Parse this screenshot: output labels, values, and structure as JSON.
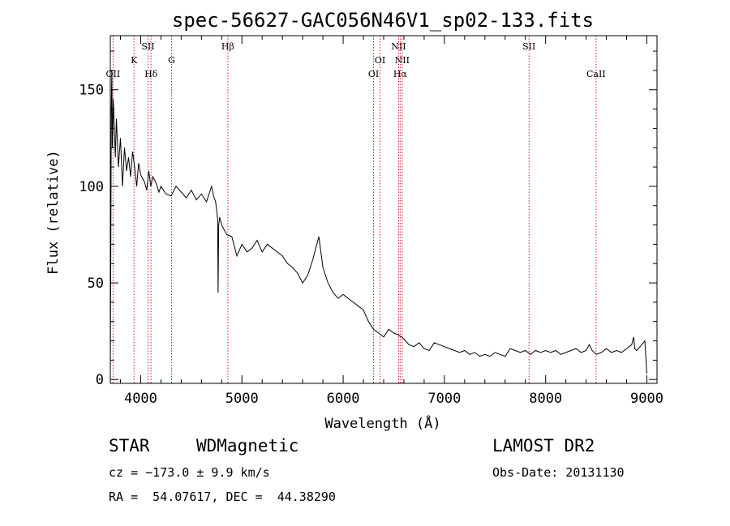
{
  "chart_data": {
    "type": "line",
    "title": "spec-56627-GAC056N46V1_sp02-133.fits",
    "xlabel": "Wavelength (Å)",
    "ylabel": "Flux (relative)",
    "xlim": [
      3700,
      9100
    ],
    "ylim": [
      -2,
      178
    ],
    "x_ticks": [
      4000,
      5000,
      6000,
      7000,
      8000,
      9000
    ],
    "y_ticks": [
      0,
      50,
      100,
      150
    ],
    "grid": false,
    "line_color": "#000000",
    "marker_color": "#cc2222",
    "series": [
      {
        "x": [
          3700,
          3705,
          3710,
          3715,
          3720,
          3730,
          3740,
          3750,
          3760,
          3780,
          3800,
          3820,
          3840,
          3860,
          3880,
          3900,
          3920,
          3940,
          3960,
          3980,
          4000,
          4020,
          4040,
          4060,
          4080,
          4100,
          4120,
          4150,
          4180,
          4200,
          4250,
          4300,
          4350,
          4400,
          4450,
          4500,
          4550,
          4600,
          4650,
          4700,
          4720,
          4740,
          4750,
          4760,
          4765,
          4770,
          4780,
          4800,
          4850,
          4900,
          4950,
          5000,
          5050,
          5100,
          5150,
          5200,
          5250,
          5300,
          5350,
          5400,
          5450,
          5500,
          5550,
          5600,
          5650,
          5700,
          5740,
          5760,
          5780,
          5800,
          5850,
          5900,
          5950,
          6000,
          6050,
          6100,
          6150,
          6200,
          6250,
          6300,
          6350,
          6400,
          6450,
          6500,
          6550,
          6600,
          6650,
          6700,
          6750,
          6800,
          6850,
          6900,
          6950,
          7000,
          7050,
          7100,
          7150,
          7200,
          7250,
          7300,
          7350,
          7400,
          7450,
          7500,
          7550,
          7600,
          7650,
          7700,
          7750,
          7800,
          7850,
          7900,
          7950,
          8000,
          8050,
          8100,
          8150,
          8200,
          8250,
          8300,
          8350,
          8400,
          8430,
          8460,
          8500,
          8550,
          8600,
          8650,
          8700,
          8750,
          8800,
          8850,
          8870,
          8880,
          8900,
          8950,
          8980,
          9000
        ],
        "y": [
          3,
          65,
          140,
          160,
          120,
          145,
          130,
          115,
          135,
          110,
          125,
          100,
          120,
          108,
          115,
          105,
          118,
          110,
          100,
          112,
          106,
          104,
          102,
          98,
          108,
          100,
          105,
          102,
          97,
          100,
          96,
          95,
          100,
          97,
          94,
          98,
          93,
          96,
          92,
          100,
          95,
          92,
          88,
          83,
          45,
          80,
          84,
          80,
          75,
          74,
          64,
          70,
          66,
          68,
          72,
          66,
          70,
          68,
          66,
          64,
          60,
          58,
          55,
          50,
          54,
          62,
          70,
          74,
          66,
          58,
          50,
          45,
          42,
          44,
          42,
          40,
          38,
          36,
          30,
          26,
          24,
          22,
          26,
          24,
          23,
          21,
          18,
          17,
          19,
          16,
          15,
          19,
          18,
          17,
          16,
          15,
          14,
          15,
          13,
          14,
          12,
          13,
          12,
          14,
          13,
          12,
          16,
          15,
          14,
          15,
          13,
          15,
          14,
          15,
          14,
          15,
          13,
          14,
          15,
          16,
          14,
          15,
          18,
          15,
          13,
          14,
          16,
          14,
          15,
          14,
          16,
          18,
          22,
          16,
          15,
          18,
          20,
          3
        ]
      }
    ],
    "line_markers": [
      {
        "label": "OII",
        "x": 3727,
        "row": 3
      },
      {
        "label": "K",
        "x": 3934,
        "row": 2
      },
      {
        "label": "SII",
        "x": 4072,
        "row": 1
      },
      {
        "label": "Hδ",
        "x": 4102,
        "row": 3
      },
      {
        "label": "G",
        "x": 4305,
        "row": 2
      },
      {
        "label": "Hβ",
        "x": 4861,
        "row": 1
      },
      {
        "label": "OI",
        "x": 6300,
        "row": 3
      },
      {
        "label": "OI",
        "x": 6364,
        "row": 2
      },
      {
        "label": "NII",
        "x": 6548,
        "row": 1
      },
      {
        "label": "Hα",
        "x": 6563,
        "row": 3
      },
      {
        "label": "NII",
        "x": 6583,
        "row": 2
      },
      {
        "label": "SII",
        "x": 7836,
        "row": 1
      },
      {
        "label": "CaII",
        "x": 8498,
        "row": 3
      }
    ]
  },
  "info": {
    "object_class": "STAR",
    "subclass": "WDMagnetic",
    "survey": "LAMOST DR2",
    "cz": "cz = −173.0 ± 9.9 km/s",
    "obs_date": "Obs-Date: 20131130",
    "coords": "RA =  54.07617, DEC =  44.38290"
  }
}
